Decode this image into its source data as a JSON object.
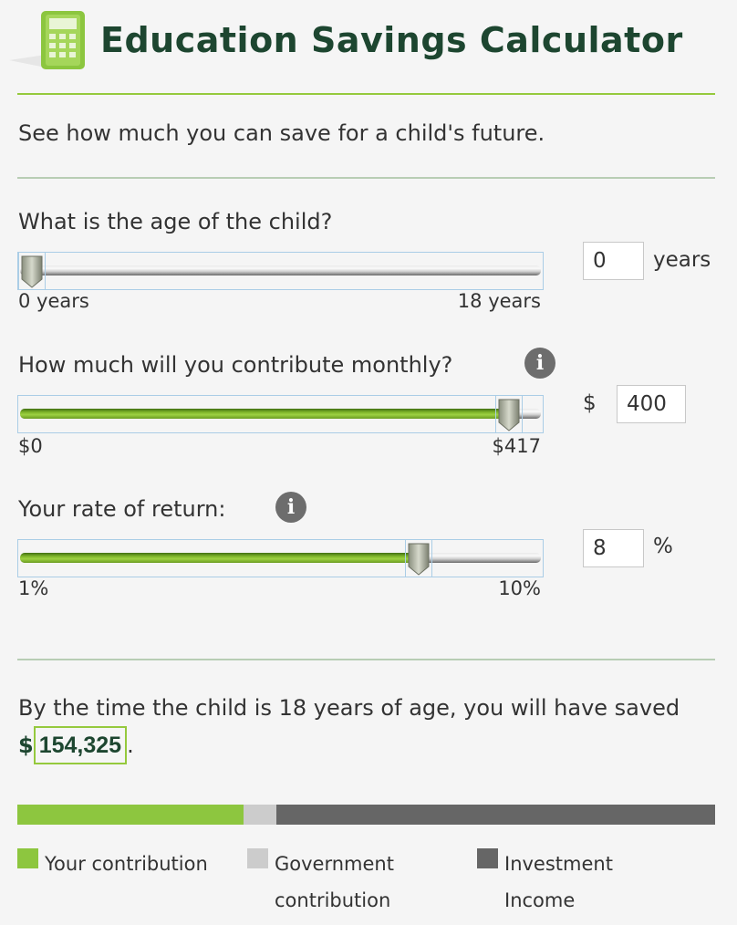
{
  "header": {
    "title": "Education Savings Calculator",
    "icon": "calculator-icon",
    "title_color": "#1d4630"
  },
  "intro": "See how much you can save for a child's future.",
  "age": {
    "question": "What is the age of the child?",
    "min_label": "0 years",
    "max_label": "18 years",
    "min": 0,
    "max": 18,
    "value": "0",
    "unit": "years"
  },
  "monthly": {
    "question": "How much will you contribute monthly?",
    "info_icon": "info-icon",
    "min_label": "$0",
    "max_label": "$417",
    "min": 0,
    "max": 417,
    "currency": "$",
    "value": "400"
  },
  "rate": {
    "question": "Your rate of return:",
    "info_icon": "info-icon",
    "min_label": "1%",
    "max_label": "10%",
    "min": 1,
    "max": 10,
    "value": "8",
    "unit": "%"
  },
  "result": {
    "prefix": "By the time the child is 18 years of age, you will have saved",
    "currency": "$",
    "amount": "154,325",
    "suffix": "."
  },
  "breakdown": {
    "segments": [
      {
        "name": "Your contribution",
        "fraction": 0.324,
        "color": "#8dc63f"
      },
      {
        "name": "Government contribution",
        "fraction": 0.047,
        "color": "#cccccc"
      },
      {
        "name": "Investment Income",
        "fraction": 0.629,
        "color": "#666666"
      }
    ]
  },
  "legend": {
    "your_contribution": "Your contribution",
    "government_line1": "Government",
    "government_line2": "contribution",
    "investment_line1": "Investment",
    "investment_line2": "Income"
  },
  "colors": {
    "accent_green": "#95c93d",
    "dark_green": "#1d4630",
    "info_gray": "#6d6d6d"
  }
}
